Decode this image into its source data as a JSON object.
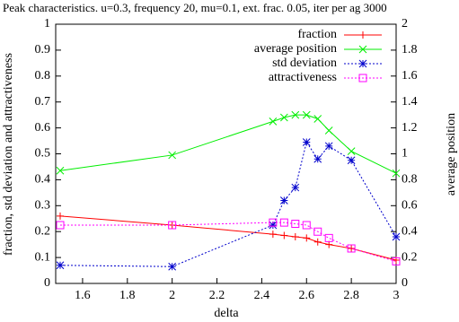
{
  "chart_data": {
    "type": "line",
    "title": "Peak characteristics. u=0.3, frequency 20, mu=0.1, ext. frac. 0.05, iter per ag 3000",
    "xlabel": "delta",
    "ylabel": "fraction, std deviation and attractiveness",
    "y2label": "average position",
    "x": [
      1.5,
      2,
      2.45,
      2.5,
      2.55,
      2.6,
      2.65,
      2.7,
      2.8,
      3
    ],
    "xlim": [
      1.5,
      3
    ],
    "xticks": [
      1.6,
      1.8,
      2,
      2.2,
      2.4,
      2.6,
      2.8,
      3
    ],
    "ylim": [
      0,
      1
    ],
    "yticks": [
      0,
      0.1,
      0.2,
      0.3,
      0.4,
      0.5,
      0.6,
      0.7,
      0.8,
      0.9,
      1
    ],
    "y2lim": [
      0,
      2
    ],
    "y2ticks": [
      0,
      0.2,
      0.4,
      0.6,
      0.8,
      1,
      1.2,
      1.4,
      1.6,
      1.8,
      2
    ],
    "ytick_color": "#ff0000",
    "y2tick_color": "#00cc00",
    "legend": "top-right",
    "series": [
      {
        "name": "fraction",
        "color": "#ff0000",
        "marker": "plus",
        "dash": "solid",
        "values": [
          0.26,
          0.225,
          0.19,
          0.185,
          0.18,
          0.175,
          0.16,
          0.15,
          0.135,
          0.09
        ]
      },
      {
        "name": "average position",
        "color": "#00ee00",
        "marker": "cross",
        "dash": "solid",
        "axis": "y2",
        "values": [
          0.87,
          0.99,
          1.25,
          1.28,
          1.3,
          1.3,
          1.27,
          1.18,
          1.02,
          0.85
        ]
      },
      {
        "name": "std deviation",
        "color": "#0000cc",
        "marker": "star",
        "dash": "dotted",
        "values": [
          0.07,
          0.065,
          0.225,
          0.32,
          0.37,
          0.545,
          0.48,
          0.53,
          0.475,
          0.18
        ]
      },
      {
        "name": "attractiveness",
        "color": "#ff00ff",
        "marker": "square",
        "dash": "dotted",
        "values": [
          0.225,
          0.225,
          0.235,
          0.235,
          0.23,
          0.225,
          0.2,
          0.175,
          0.135,
          0.085
        ]
      }
    ]
  }
}
